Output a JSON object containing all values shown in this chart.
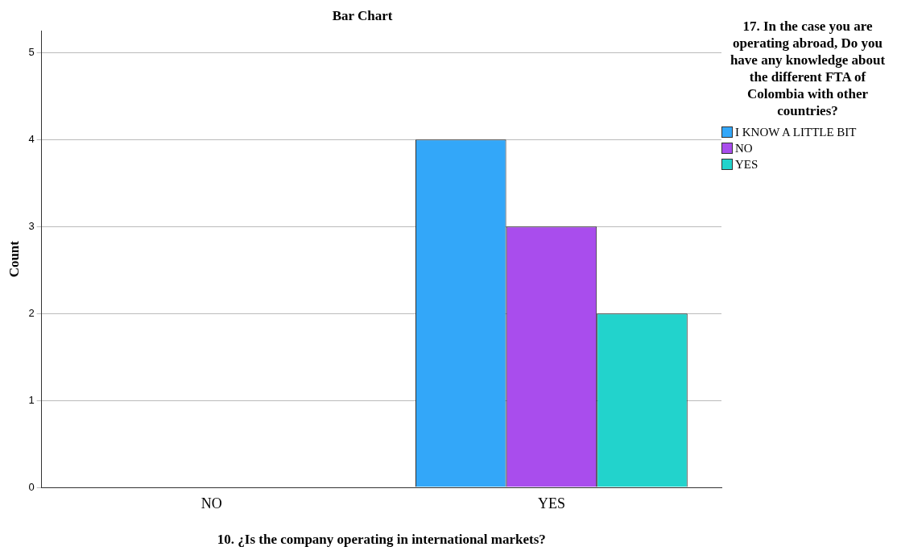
{
  "chart_data": {
    "type": "bar",
    "title": "Bar Chart",
    "xlabel": "10. ¿Is the company operating in international markets?",
    "ylabel": "Count",
    "legend_title": "17. In the case you are operating abroad, Do you have any knowledge about the different FTA of Colombia with other countries?",
    "categories": [
      "NO",
      "YES"
    ],
    "series": [
      {
        "name": "I KNOW A LITTLE BIT",
        "color": "#33a7f9",
        "values": [
          null,
          4
        ]
      },
      {
        "name": "NO",
        "color": "#a94ded",
        "values": [
          null,
          3
        ]
      },
      {
        "name": "YES",
        "color": "#22d3cc",
        "values": [
          null,
          2
        ]
      }
    ],
    "ylim": [
      0,
      5.25
    ],
    "yticks": [
      0,
      1,
      2,
      3,
      4,
      5
    ],
    "grid": "y",
    "legend": "right"
  }
}
